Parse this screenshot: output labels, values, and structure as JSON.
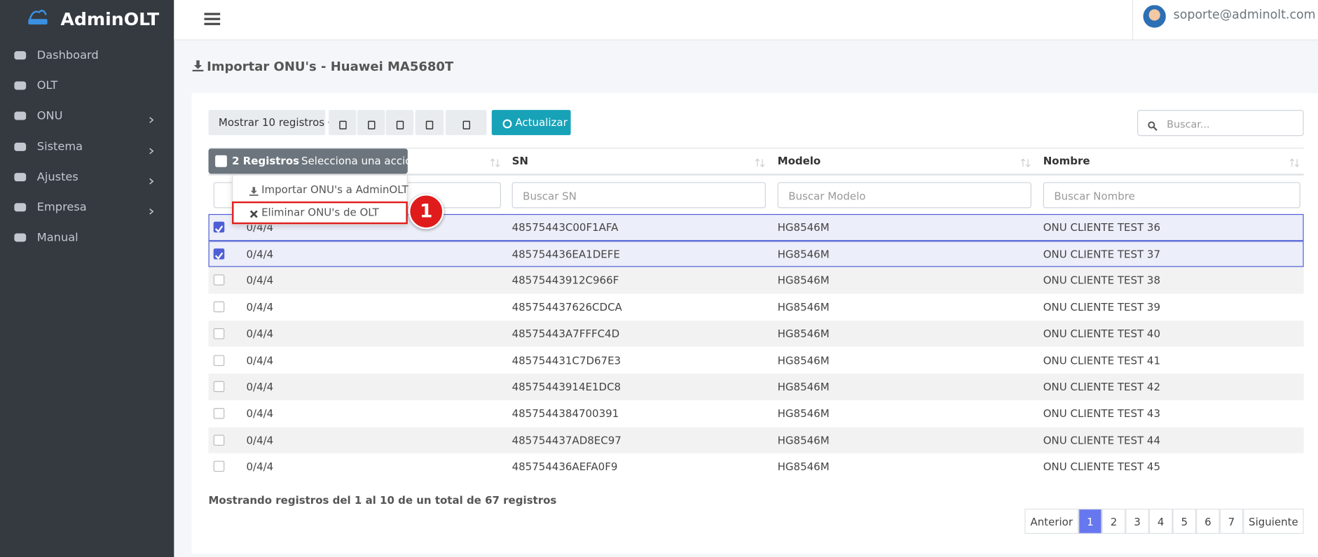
{
  "sidebar": {
    "brand": "AdminOLT",
    "menu": [
      {
        "label": "Dashboard",
        "sub": false
      },
      {
        "label": "OLT",
        "sub": false
      },
      {
        "label": "ONU",
        "sub": true
      },
      {
        "label": "Sistema",
        "sub": true
      },
      {
        "label": "Ajustes",
        "sub": true
      },
      {
        "label": "Empresa",
        "sub": true
      },
      {
        "label": "Manual",
        "sub": false
      }
    ]
  },
  "header": {
    "user": "soporte@adminolt.com"
  },
  "page": {
    "title": "Importar ONU's - Huawei MA5680T"
  },
  "toolbar": {
    "length_button": "Mostrar 10 registros",
    "refresh_button": "Actualizar",
    "search_placeholder": "Buscar..."
  },
  "table": {
    "selection_count": "2 Registros",
    "selection_action": "- Selecciona una acción",
    "columns": [
      "SN",
      "Modelo",
      "Nombre"
    ],
    "filters": [
      "Buscar SN",
      "Buscar Modelo",
      "Buscar Nombre"
    ],
    "rows": [
      {
        "checked": true,
        "cells": [
          "0/4/4",
          "48575443C00F1AFA",
          "HG8546M",
          "ONU CLIENTE TEST 36"
        ]
      },
      {
        "checked": true,
        "cells": [
          "0/4/4",
          "485754436EA1DEFE",
          "HG8546M",
          "ONU CLIENTE TEST 37"
        ]
      },
      {
        "checked": false,
        "cells": [
          "0/4/4",
          "48575443912C966F",
          "HG8546M",
          "ONU CLIENTE TEST 38"
        ]
      },
      {
        "checked": false,
        "cells": [
          "0/4/4",
          "485754437626CDCA",
          "HG8546M",
          "ONU CLIENTE TEST 39"
        ]
      },
      {
        "checked": false,
        "cells": [
          "0/4/4",
          "48575443A7FFFC4D",
          "HG8546M",
          "ONU CLIENTE TEST 40"
        ]
      },
      {
        "checked": false,
        "cells": [
          "0/4/4",
          "485754431C7D67E3",
          "HG8546M",
          "ONU CLIENTE TEST 41"
        ]
      },
      {
        "checked": false,
        "cells": [
          "0/4/4",
          "48575443914E1DC8",
          "HG8546M",
          "ONU CLIENTE TEST 42"
        ]
      },
      {
        "checked": false,
        "cells": [
          "0/4/4",
          "4857544384700391",
          "HG8546M",
          "ONU CLIENTE TEST 43"
        ]
      },
      {
        "checked": false,
        "cells": [
          "0/4/4",
          "485754437AD8EC97",
          "HG8546M",
          "ONU CLIENTE TEST 44"
        ]
      },
      {
        "checked": false,
        "cells": [
          "0/4/4",
          "485754436AEFA0F9",
          "HG8546M",
          "ONU CLIENTE TEST 45"
        ]
      }
    ],
    "info": "Mostrando registros del 1 al 10 de un total de 67 registros"
  },
  "dropdown": {
    "items": [
      "Importar ONU's a AdminOLT",
      "Eliminar ONU's de OLT"
    ]
  },
  "pagination": {
    "previous": "Anterior",
    "pages": [
      "1",
      "2",
      "3",
      "4",
      "5",
      "6",
      "7"
    ],
    "active": 0,
    "next": "Siguiente"
  },
  "annotation": {
    "marker": "1"
  }
}
